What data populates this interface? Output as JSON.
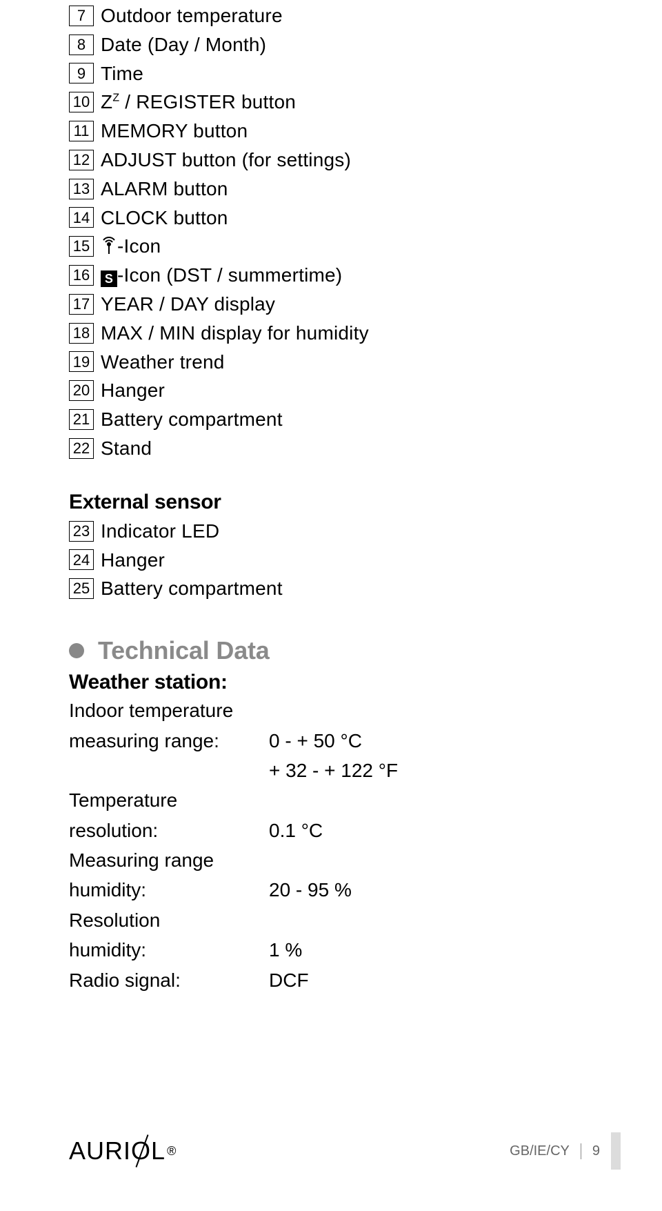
{
  "colors": {
    "text": "#000000",
    "muted": "#8a8a8a",
    "bullet": "#888888",
    "footer_text": "#666666",
    "bar": "#dcdcdc",
    "background": "#ffffff"
  },
  "list_main": [
    {
      "n": "7",
      "text": "Outdoor temperature"
    },
    {
      "n": "8",
      "text": "Date (Day / Month)"
    },
    {
      "n": "9",
      "text": "Time"
    },
    {
      "n": "10",
      "text_prefix": "Z",
      "text_sup": "Z",
      "text_suffix": " / REGISTER button"
    },
    {
      "n": "11",
      "text": "MEMORY button"
    },
    {
      "n": "12",
      "text": "ADJUST button (for settings)"
    },
    {
      "n": "13",
      "text": "ALARM button"
    },
    {
      "n": "14",
      "text": "CLOCK button"
    },
    {
      "n": "15",
      "icon": "radio",
      "text_suffix": "-Icon"
    },
    {
      "n": "16",
      "icon": "s",
      "text_suffix": "-Icon (DST / summertime)"
    },
    {
      "n": "17",
      "text": "YEAR / DAY display"
    },
    {
      "n": "18",
      "text": "MAX / MIN display for humidity"
    },
    {
      "n": "19",
      "text": "Weather trend"
    },
    {
      "n": "20",
      "text": "Hanger"
    },
    {
      "n": "21",
      "text": "Battery compartment"
    },
    {
      "n": "22",
      "text": "Stand"
    }
  ],
  "external_sensor_heading": "External sensor",
  "list_external": [
    {
      "n": "23",
      "text": "Indicator LED"
    },
    {
      "n": "24",
      "text": "Hanger"
    },
    {
      "n": "25",
      "text": "Battery compartment"
    }
  ],
  "technical_data_heading": "Technical Data",
  "weather_station_heading": "Weather station:",
  "specs": [
    {
      "label_line1": "Indoor temperature",
      "label_line2": "measuring range:",
      "value_line1": "0 - + 50 °C",
      "value_line2": "+ 32 - + 122 °F"
    },
    {
      "label_line1": "Temperature",
      "label_line2": "resolution:",
      "value_line1": "0.1 °C"
    },
    {
      "label_line1": "Measuring range",
      "label_line2": "humidity:",
      "value_line1": "20 - 95 %"
    },
    {
      "label_line1": "Resolution",
      "label_line2": "humidity:",
      "value_line1": "1 %"
    },
    {
      "label_single": "Radio signal:",
      "value_line1": "DCF"
    }
  ],
  "s_icon_letter": "S",
  "footer": {
    "brand_pre": "AURI",
    "brand_o": "O",
    "brand_post": "L",
    "reg": "®",
    "region": "GB/IE/CY",
    "page": "9"
  }
}
